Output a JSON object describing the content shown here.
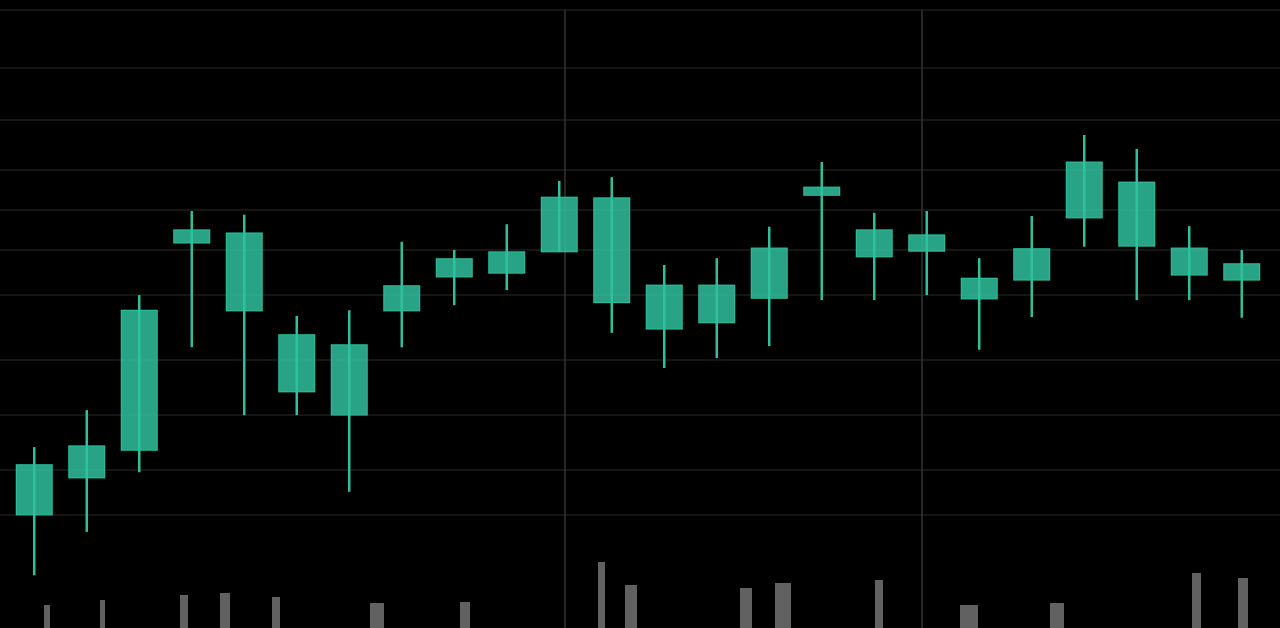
{
  "chart_data": {
    "type": "candlestick",
    "color": "#2fbf9c",
    "ylim": [
      0,
      100
    ],
    "open": [
      18.0,
      23.9,
      28.3,
      61.3,
      50.5,
      37.6,
      33.9,
      50.5,
      55.9,
      56.5,
      59.9,
      51.8,
      47.6,
      48.6,
      52.5,
      68.9,
      59.1,
      60.0,
      52.4,
      55.4,
      65.3,
      60.8,
      56.2,
      55.4
    ],
    "high": [
      28.8,
      34.7,
      53.0,
      66.4,
      65.8,
      49.7,
      50.6,
      61.5,
      60.2,
      64.3,
      71.2,
      71.8,
      57.8,
      58.9,
      63.9,
      74.2,
      66.1,
      66.4,
      58.9,
      65.6,
      78.5,
      76.3,
      64.0,
      60.2
    ],
    "low": [
      8.4,
      15.3,
      24.8,
      44.7,
      33.9,
      33.9,
      21.7,
      44.7,
      51.4,
      53.8,
      59.9,
      47.0,
      41.4,
      43.0,
      44.9,
      52.2,
      52.2,
      53.0,
      44.3,
      49.5,
      60.7,
      52.2,
      52.2,
      49.4
    ],
    "close": [
      26.0,
      29.0,
      50.6,
      63.4,
      62.9,
      46.7,
      45.1,
      54.5,
      58.8,
      59.9,
      68.6,
      68.5,
      54.6,
      54.6,
      60.5,
      70.2,
      63.4,
      62.6,
      55.7,
      60.4,
      74.2,
      71.0,
      60.5,
      58.0
    ]
  }
}
